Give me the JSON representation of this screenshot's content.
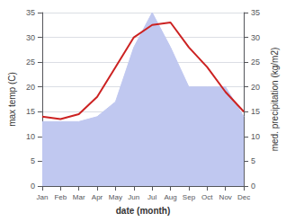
{
  "chart_data": {
    "type": "line",
    "xlabel": "date (month)",
    "ylabel": "max temp (C)",
    "y2label": "med. precipitation (kg/m2)",
    "categories": [
      "Jan",
      "Feb",
      "Mar",
      "Apr",
      "May",
      "Jun",
      "Jul",
      "Aug",
      "Sep",
      "Oct",
      "Nov",
      "Dec"
    ],
    "series": [
      {
        "type": "area",
        "axis": "y2",
        "color": "#c0c8f0",
        "values": [
          13,
          13,
          13,
          14,
          17,
          28,
          35,
          28,
          20,
          20,
          20,
          14
        ]
      },
      {
        "type": "line",
        "color": "#cc2222",
        "values": [
          14,
          13.5,
          14.5,
          18,
          24,
          30,
          32.5,
          33,
          28,
          24,
          19,
          15
        ]
      }
    ],
    "ylim": [
      0,
      35
    ],
    "yticks": [
      0,
      5,
      10,
      15,
      20,
      25,
      30,
      35
    ],
    "y2lim": [
      0,
      35
    ],
    "y2ticks": [
      0,
      5,
      10,
      15,
      20,
      25,
      30,
      35
    ],
    "grid": true
  }
}
